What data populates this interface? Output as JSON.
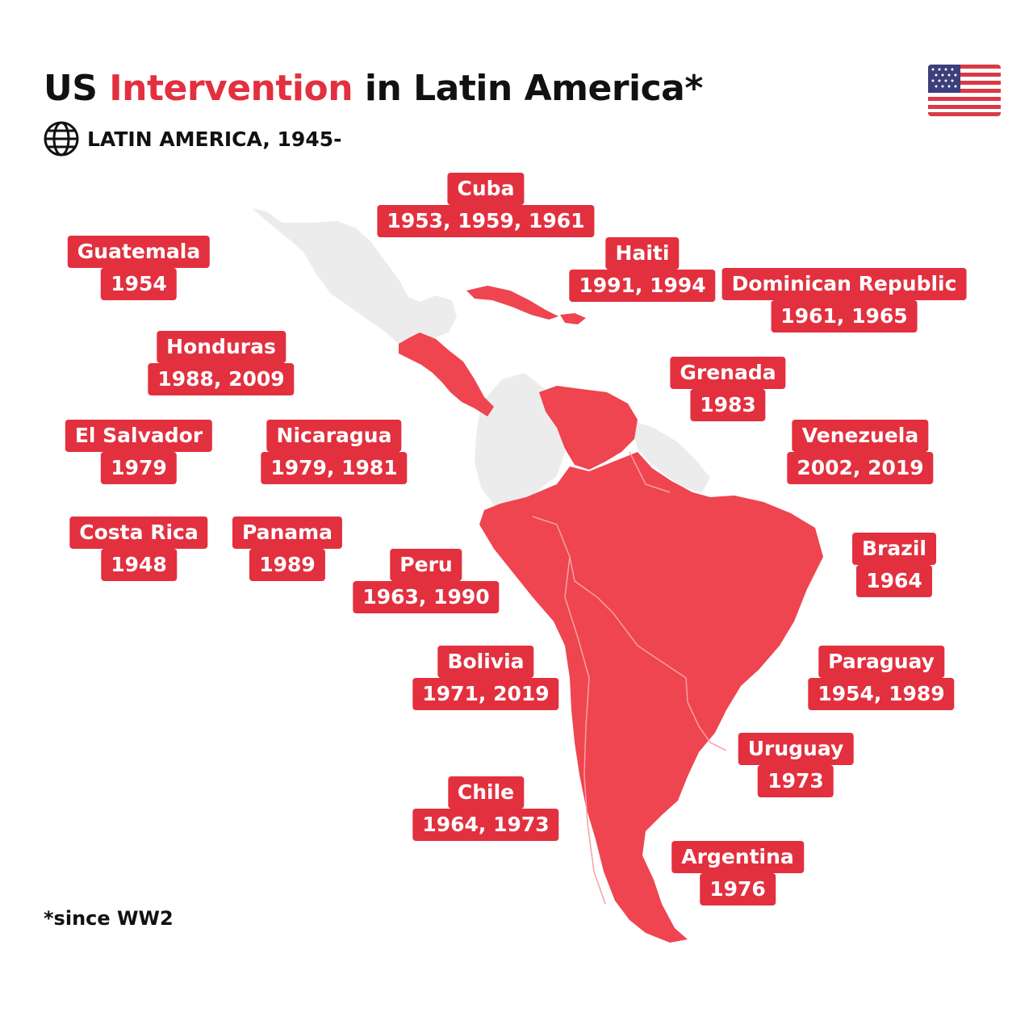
{
  "header": {
    "title_part1": "US ",
    "title_part2": "Intervention",
    "title_part3": " in Latin America*",
    "subtitle": "LATIN AMERICA, 1945-",
    "globe_icon": "globe-icon",
    "flag_icon": "us-flag-icon"
  },
  "colors": {
    "accent": "#e2303f",
    "land_highlight": "#ee4550",
    "land_neutral": "#ececec",
    "text": "#111111"
  },
  "countries": [
    {
      "id": "cuba",
      "name": "Cuba",
      "years": "1953, 1959, 1961"
    },
    {
      "id": "guatemala",
      "name": "Guatemala",
      "years": "1954"
    },
    {
      "id": "haiti",
      "name": "Haiti",
      "years": "1991, 1994"
    },
    {
      "id": "dominican-republic",
      "name": "Dominican Republic",
      "years": "1961, 1965"
    },
    {
      "id": "honduras",
      "name": "Honduras",
      "years": "1988, 2009"
    },
    {
      "id": "grenada",
      "name": "Grenada",
      "years": "1983"
    },
    {
      "id": "el-salvador",
      "name": "El Salvador",
      "years": "1979"
    },
    {
      "id": "nicaragua",
      "name": "Nicaragua",
      "years": "1979, 1981"
    },
    {
      "id": "venezuela",
      "name": "Venezuela",
      "years": "2002, 2019"
    },
    {
      "id": "costa-rica",
      "name": "Costa Rica",
      "years": "1948"
    },
    {
      "id": "panama",
      "name": "Panama",
      "years": "1989"
    },
    {
      "id": "peru",
      "name": "Peru",
      "years": "1963, 1990"
    },
    {
      "id": "brazil",
      "name": "Brazil",
      "years": "1964"
    },
    {
      "id": "bolivia",
      "name": "Bolivia",
      "years": "1971, 2019"
    },
    {
      "id": "paraguay",
      "name": "Paraguay",
      "years": "1954, 1989"
    },
    {
      "id": "uruguay",
      "name": "Uruguay",
      "years": "1973"
    },
    {
      "id": "chile",
      "name": "Chile",
      "years": "1964, 1973"
    },
    {
      "id": "argentina",
      "name": "Argentina",
      "years": "1976"
    }
  ],
  "footnote": "*since WW2"
}
